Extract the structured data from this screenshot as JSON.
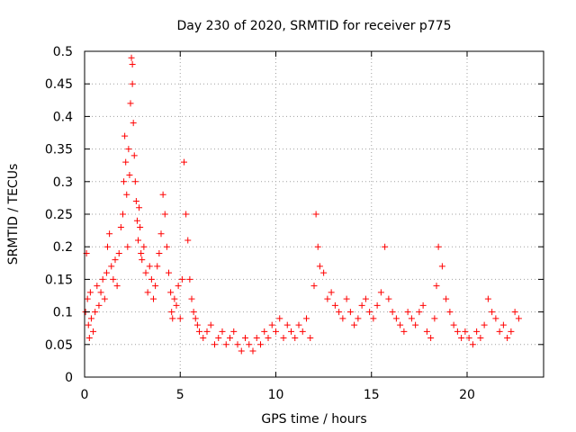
{
  "chart_data": {
    "type": "scatter",
    "title": "Day 230 of 2020, SRMTID for receiver p775",
    "xlabel": "GPS time / hours",
    "ylabel": "SRMTID / TECUs",
    "xlim": [
      0,
      24
    ],
    "ylim": [
      0,
      0.5
    ],
    "xticks": [
      0,
      5,
      10,
      15,
      20
    ],
    "xtick_labels": [
      "0",
      "5",
      "10",
      "15",
      "20"
    ],
    "yticks": [
      0,
      0.05,
      0.1,
      0.15,
      0.2,
      0.25,
      0.3,
      0.35,
      0.4,
      0.45,
      0.5
    ],
    "ytick_labels": [
      "0",
      "0.05",
      "0.1",
      "0.15",
      "0.2",
      "0.25",
      "0.3",
      "0.35",
      "0.4",
      "0.45",
      "0.5"
    ],
    "grid": true,
    "marker": "+",
    "colors": {
      "series": "#ff0000",
      "grid": "#a0a0a0",
      "axis": "#000000"
    },
    "series": [
      {
        "name": "SRMTID",
        "x": [
          0.05,
          0.1,
          0.15,
          0.2,
          0.25,
          0.3,
          0.35,
          0.45,
          0.55,
          0.65,
          0.75,
          0.85,
          0.95,
          1.05,
          1.15,
          1.2,
          1.3,
          1.4,
          1.5,
          1.6,
          1.7,
          1.8,
          1.9,
          2.0,
          2.05,
          2.1,
          2.15,
          2.2,
          2.25,
          2.3,
          2.35,
          2.4,
          2.45,
          2.5,
          2.5,
          2.55,
          2.6,
          2.65,
          2.7,
          2.75,
          2.8,
          2.85,
          2.9,
          2.95,
          3.0,
          3.1,
          3.2,
          3.3,
          3.4,
          3.5,
          3.6,
          3.7,
          3.8,
          3.9,
          4.0,
          4.1,
          4.2,
          4.3,
          4.4,
          4.5,
          4.55,
          4.6,
          4.7,
          4.8,
          4.9,
          5.0,
          5.1,
          5.2,
          5.3,
          5.4,
          5.5,
          5.6,
          5.7,
          5.8,
          5.9,
          6.0,
          6.2,
          6.4,
          6.6,
          6.8,
          7.0,
          7.2,
          7.4,
          7.6,
          7.8,
          8.0,
          8.2,
          8.4,
          8.6,
          8.8,
          9.0,
          9.2,
          9.4,
          9.6,
          9.8,
          10.0,
          10.2,
          10.4,
          10.6,
          10.8,
          11.0,
          11.2,
          11.4,
          11.6,
          11.8,
          12.0,
          12.1,
          12.2,
          12.3,
          12.5,
          12.7,
          12.9,
          13.1,
          13.3,
          13.5,
          13.7,
          13.9,
          14.1,
          14.3,
          14.5,
          14.7,
          14.9,
          15.1,
          15.3,
          15.5,
          15.7,
          15.9,
          16.1,
          16.3,
          16.5,
          16.7,
          16.9,
          17.1,
          17.3,
          17.5,
          17.7,
          17.9,
          18.1,
          18.3,
          18.4,
          18.5,
          18.7,
          18.9,
          19.1,
          19.3,
          19.5,
          19.7,
          19.9,
          20.1,
          20.3,
          20.5,
          20.7,
          20.9,
          21.1,
          21.3,
          21.5,
          21.7,
          21.9,
          22.1,
          22.3,
          22.5,
          22.7
        ],
        "y": [
          0.1,
          0.19,
          0.12,
          0.08,
          0.06,
          0.13,
          0.09,
          0.07,
          0.1,
          0.14,
          0.11,
          0.13,
          0.15,
          0.12,
          0.16,
          0.2,
          0.22,
          0.17,
          0.15,
          0.18,
          0.14,
          0.19,
          0.23,
          0.25,
          0.3,
          0.37,
          0.33,
          0.28,
          0.2,
          0.35,
          0.31,
          0.42,
          0.49,
          0.48,
          0.45,
          0.39,
          0.34,
          0.3,
          0.27,
          0.24,
          0.21,
          0.26,
          0.23,
          0.19,
          0.18,
          0.2,
          0.16,
          0.13,
          0.17,
          0.15,
          0.12,
          0.14,
          0.17,
          0.19,
          0.22,
          0.28,
          0.25,
          0.2,
          0.16,
          0.13,
          0.1,
          0.09,
          0.12,
          0.11,
          0.14,
          0.09,
          0.15,
          0.33,
          0.25,
          0.21,
          0.15,
          0.12,
          0.1,
          0.09,
          0.08,
          0.07,
          0.06,
          0.07,
          0.08,
          0.05,
          0.06,
          0.07,
          0.05,
          0.06,
          0.07,
          0.05,
          0.04,
          0.06,
          0.05,
          0.04,
          0.06,
          0.05,
          0.07,
          0.06,
          0.08,
          0.07,
          0.09,
          0.06,
          0.08,
          0.07,
          0.06,
          0.08,
          0.07,
          0.09,
          0.06,
          0.14,
          0.25,
          0.2,
          0.17,
          0.16,
          0.12,
          0.13,
          0.11,
          0.1,
          0.09,
          0.12,
          0.1,
          0.08,
          0.09,
          0.11,
          0.12,
          0.1,
          0.09,
          0.11,
          0.13,
          0.2,
          0.12,
          0.1,
          0.09,
          0.08,
          0.07,
          0.1,
          0.09,
          0.08,
          0.1,
          0.11,
          0.07,
          0.06,
          0.09,
          0.14,
          0.2,
          0.17,
          0.12,
          0.1,
          0.08,
          0.07,
          0.06,
          0.07,
          0.06,
          0.05,
          0.07,
          0.06,
          0.08,
          0.12,
          0.1,
          0.09,
          0.07,
          0.08,
          0.06,
          0.07,
          0.1,
          0.09
        ]
      }
    ]
  }
}
